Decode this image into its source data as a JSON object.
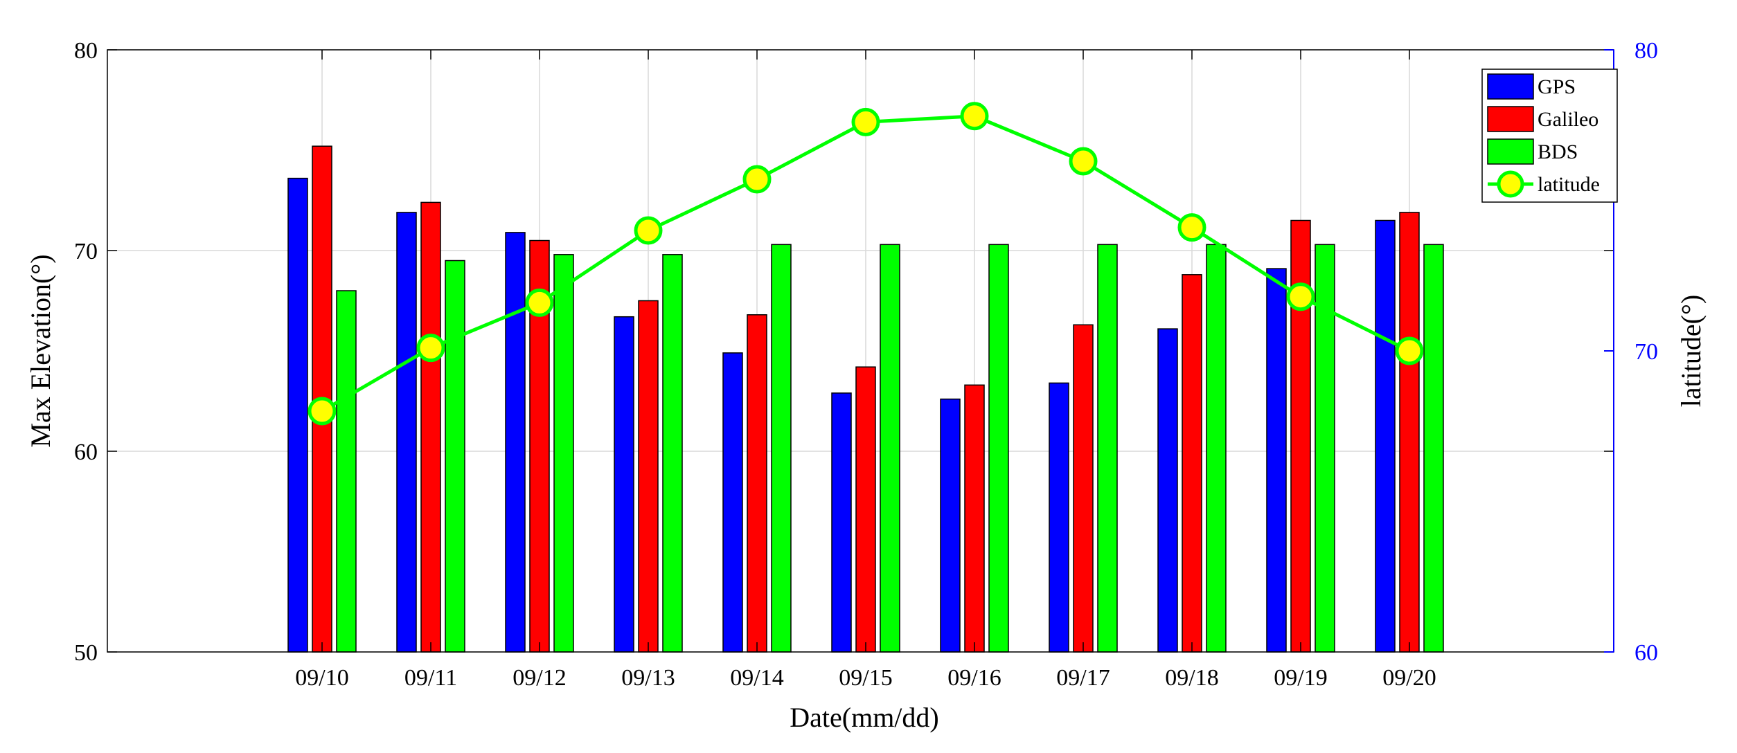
{
  "chart_data": {
    "type": "bar",
    "categories": [
      "09/10",
      "09/11",
      "09/12",
      "09/13",
      "09/14",
      "09/15",
      "09/16",
      "09/17",
      "09/18",
      "09/19",
      "09/20"
    ],
    "series": [
      {
        "name": "GPS",
        "color": "#0000ff",
        "values": [
          73.6,
          71.9,
          70.9,
          66.7,
          64.9,
          62.9,
          62.6,
          63.4,
          66.1,
          69.1,
          71.5
        ]
      },
      {
        "name": "Galileo",
        "color": "#ff0000",
        "values": [
          75.2,
          72.4,
          70.5,
          67.5,
          66.8,
          64.2,
          63.3,
          66.3,
          68.8,
          71.5,
          71.9
        ]
      },
      {
        "name": "BDS",
        "color": "#00ff00",
        "values": [
          68.0,
          69.5,
          69.8,
          69.8,
          70.3,
          70.3,
          70.3,
          70.3,
          70.3,
          70.3,
          70.3
        ]
      }
    ],
    "line_series": {
      "name": "latitude",
      "axis": "right",
      "type": "line",
      "line_color": "#00ff00",
      "marker_color": "#ffff00",
      "values": [
        68.0,
        70.1,
        71.6,
        74.0,
        75.7,
        77.6,
        77.8,
        76.3,
        74.1,
        71.8,
        70.0
      ]
    },
    "xlabel": "Date(mm/dd)",
    "ylabel": "Max Elevation(°)",
    "y2label": "latitude(°)",
    "ylim": [
      50,
      80
    ],
    "y2lim": [
      60,
      80
    ],
    "yticks": [
      "50",
      "60",
      "70",
      "80"
    ],
    "y2ticks": [
      "60",
      "70",
      "80"
    ],
    "y2_color": "#0000ff",
    "grid": true,
    "legend": "top-right"
  }
}
